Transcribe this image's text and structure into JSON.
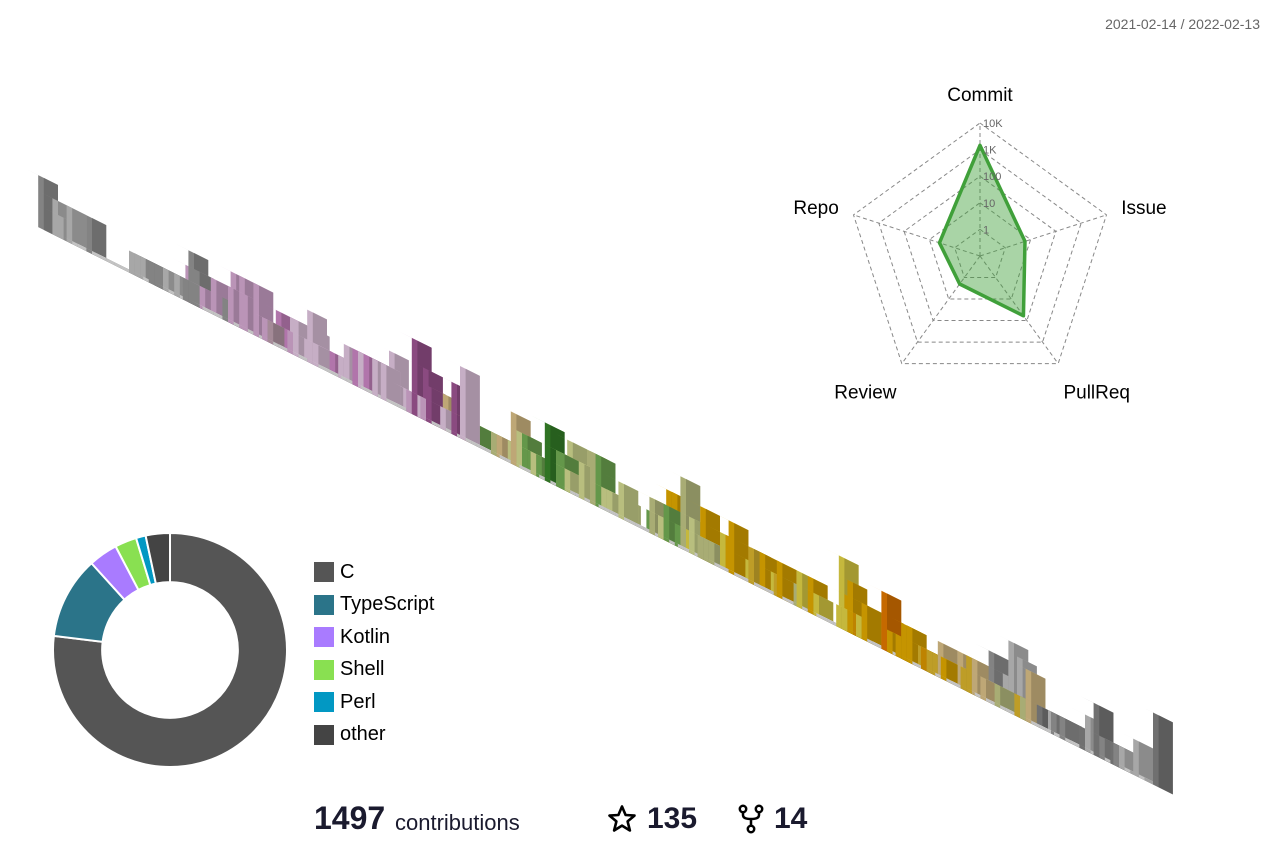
{
  "period": "2021-02-14 / 2022-02-13",
  "summary": {
    "contributions": "1497",
    "contributions_label": "contributions",
    "stars": "135",
    "forks": "14"
  },
  "icons": {
    "star": "star-icon",
    "fork": "fork-icon"
  },
  "chart_data": [
    {
      "type": "bar3d-calendar",
      "weeks": 53,
      "days_per_week": 7,
      "empty_color": "#eeeeee",
      "palette": [
        "#888888",
        "#e3b4df",
        "#f2d4f0",
        "#d88fd0",
        "#a85a9c",
        "#c8a8b8",
        "#cdd28e",
        "#e0e89a",
        "#7ab85a",
        "#3a8c2c",
        "#f0e04a",
        "#e8c030",
        "#f0b400",
        "#e8a000",
        "#f28000",
        "#e8cc90",
        "#a0a0a0",
        "#cccccc"
      ]
    },
    {
      "type": "radar",
      "axes": [
        "Commit",
        "Issue",
        "PullReq",
        "Review",
        "Repo"
      ],
      "scale_labels": [
        "1",
        "10",
        "100",
        "1K",
        "10K"
      ],
      "scale": "log",
      "range": [
        0.1,
        10000
      ],
      "values": [
        1450,
        6,
        60,
        2,
        4
      ],
      "color": "#40a03a"
    },
    {
      "type": "pie",
      "hole": 0.58,
      "labels": [
        "C",
        "TypeScript",
        "Kotlin",
        "Shell",
        "Perl",
        "other"
      ],
      "values": [
        1150,
        170,
        60,
        45,
        20,
        50
      ],
      "colors": [
        "#555555",
        "#2b7489",
        "#a97bff",
        "#89e051",
        "#0298c3",
        "#444444"
      ]
    }
  ]
}
